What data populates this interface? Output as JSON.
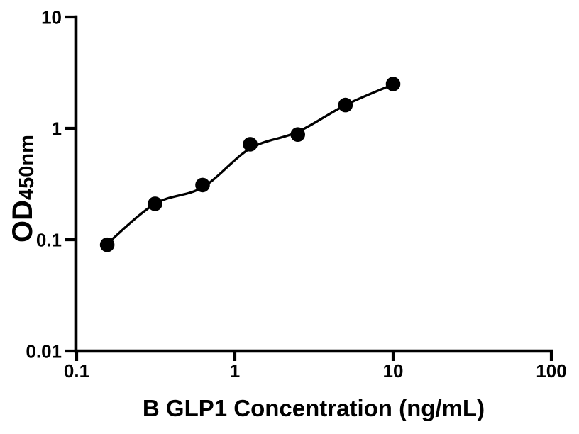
{
  "figure": {
    "background_color": "#ffffff",
    "foreground_color": "#000000"
  },
  "chart_data": {
    "type": "scatter",
    "title": "",
    "xlabel": "B GLP1 Concentration (ng/mL)",
    "ylabel_main": "OD",
    "ylabel_sub": "450nm",
    "x_scale": "log10",
    "y_scale": "log10",
    "xlim": [
      0.1,
      100
    ],
    "ylim": [
      0.01,
      10
    ],
    "grid": false,
    "legend": null,
    "x_ticks": [
      {
        "label": "0.1",
        "value": 0.1
      },
      {
        "label": "1",
        "value": 1
      },
      {
        "label": "10",
        "value": 10
      },
      {
        "label": "100",
        "value": 100
      }
    ],
    "y_ticks": [
      {
        "label": "0.01",
        "value": 0.01
      },
      {
        "label": "0.1",
        "value": 0.1
      },
      {
        "label": "1",
        "value": 1
      },
      {
        "label": "10",
        "value": 10
      }
    ],
    "series": [
      {
        "name": "standard-curve-points",
        "marker": "filled-circle",
        "marker_color": "#000000",
        "x": [
          0.156,
          0.313,
          0.625,
          1.25,
          2.5,
          5,
          10
        ],
        "y": [
          0.09,
          0.21,
          0.31,
          0.72,
          0.88,
          1.62,
          2.5
        ]
      }
    ],
    "fit_curve": {
      "name": "fitted-curve",
      "line_color": "#000000",
      "x": [
        0.156,
        0.313,
        0.625,
        1.25,
        2.5,
        5,
        10
      ],
      "y": [
        0.092,
        0.21,
        0.295,
        0.66,
        0.93,
        1.62,
        2.48
      ]
    }
  }
}
